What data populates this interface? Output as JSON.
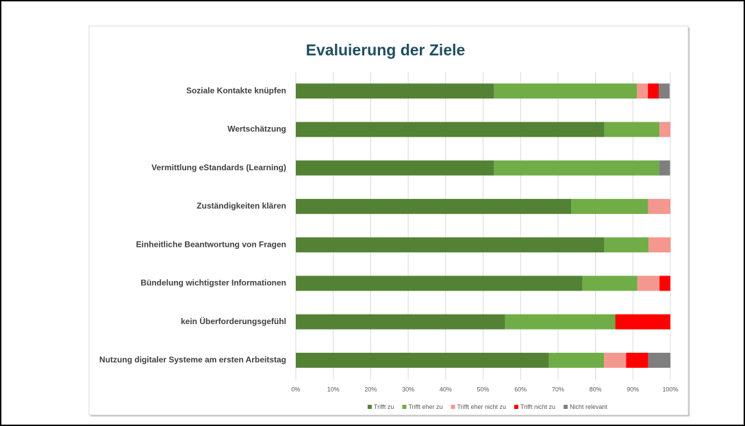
{
  "chart_data": {
    "type": "stacked-barh",
    "title": "Evaluierung der Ziele",
    "categories": [
      "Soziale Kontakte knüpfen",
      "Wertschätzung",
      "Vermittlung eStandards (Learning)",
      "Zuständigkeiten klären",
      "Einheitliche Beantwortung von Fragen",
      "Bündelung wichtigster Informationen",
      "kein Überforderungsgefühl",
      "Nutzung digitaler Systeme am ersten Arbeitstag"
    ],
    "series": [
      {
        "name": "Trifft zu",
        "color": "#548235",
        "values": [
          52.9,
          82.4,
          52.9,
          73.5,
          82.4,
          76.5,
          55.9,
          67.6
        ]
      },
      {
        "name": "Trifft eher zu",
        "color": "#70ad47",
        "values": [
          38.2,
          14.7,
          44.1,
          20.6,
          11.8,
          14.7,
          29.4,
          14.7
        ]
      },
      {
        "name": "Trifft eher nicht zu",
        "color": "#f4978e",
        "values": [
          2.9,
          2.9,
          0,
          5.9,
          5.9,
          5.9,
          0,
          5.9
        ]
      },
      {
        "name": "Trifft nicht zu",
        "color": "#ff0000",
        "values": [
          2.9,
          0,
          0,
          0,
          0,
          2.9,
          14.7,
          5.9
        ]
      },
      {
        "name": "Nicht relevant",
        "color": "#7f7f7f",
        "values": [
          2.9,
          0,
          2.9,
          0,
          0,
          0,
          0,
          5.9
        ]
      }
    ],
    "xlim": [
      0,
      100
    ],
    "xticks": [
      {
        "value": 0,
        "label": "0%"
      },
      {
        "value": 10,
        "label": "10%"
      },
      {
        "value": 20,
        "label": "20%"
      },
      {
        "value": 30,
        "label": "30%"
      },
      {
        "value": 40,
        "label": "40%"
      },
      {
        "value": 50,
        "label": "50%"
      },
      {
        "value": 60,
        "label": "60%"
      },
      {
        "value": 70,
        "label": "70%"
      },
      {
        "value": 80,
        "label": "80%"
      },
      {
        "value": 90,
        "label": "90%"
      },
      {
        "value": 100,
        "label": "100%"
      }
    ],
    "grid": true,
    "legend": "bottom"
  }
}
